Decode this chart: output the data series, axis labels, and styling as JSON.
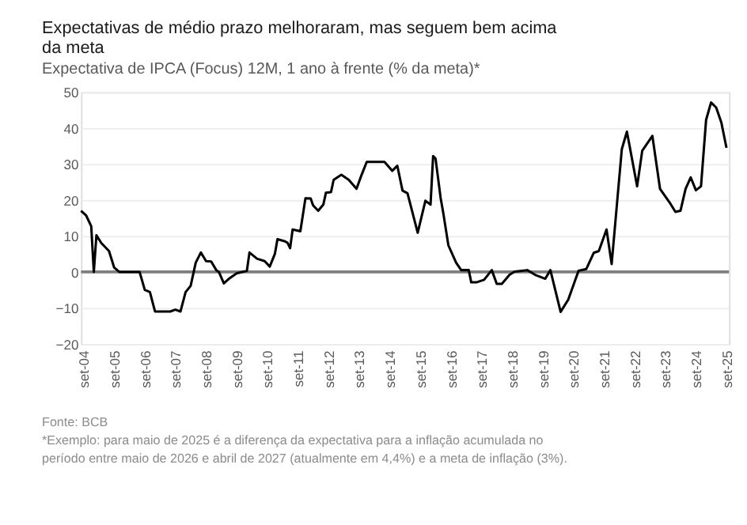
{
  "chart_data": {
    "type": "line",
    "title": "Expectativas de médio prazo melhoraram, mas seguem bem acima da meta",
    "subtitle": "Expectativa de IPCA (Focus) 12M, 1 ano à frente (% da meta)*",
    "x": [
      "2004-08",
      "2004-10",
      "2004-12",
      "2005-01",
      "2005-02",
      "2005-04",
      "2005-07",
      "2005-09",
      "2005-11",
      "2006-07",
      "2006-09",
      "2006-11",
      "2007-01",
      "2007-07",
      "2007-09",
      "2007-11",
      "2008-01",
      "2008-03",
      "2008-05",
      "2008-07",
      "2008-09",
      "2008-11",
      "2009-01",
      "2009-02",
      "2009-04",
      "2009-06",
      "2009-09",
      "2010-01",
      "2010-02",
      "2010-05",
      "2010-08",
      "2010-10",
      "2010-12",
      "2011-01",
      "2011-04",
      "2011-05",
      "2011-06",
      "2011-07",
      "2011-10",
      "2011-12",
      "2012-02",
      "2012-03",
      "2012-05",
      "2012-07",
      "2012-08",
      "2012-10",
      "2012-11",
      "2013-02",
      "2013-05",
      "2013-08",
      "2013-10",
      "2013-12",
      "2014-07",
      "2014-10",
      "2014-12",
      "2015-02",
      "2015-04",
      "2015-08",
      "2015-11",
      "2016-01",
      "2016-02",
      "2016-03",
      "2016-05",
      "2016-06",
      "2016-08",
      "2016-11",
      "2017-01",
      "2017-04",
      "2017-05",
      "2017-07",
      "2017-10",
      "2018-01",
      "2018-03",
      "2018-05",
      "2018-08",
      "2018-10",
      "2019-03",
      "2019-06",
      "2019-10",
      "2019-12",
      "2020-04",
      "2020-07",
      "2020-11",
      "2021-02",
      "2021-05",
      "2021-07",
      "2021-10",
      "2021-12",
      "2022-04",
      "2022-06",
      "2022-10",
      "2022-12",
      "2023-04",
      "2023-07",
      "2023-11",
      "2024-01",
      "2024-03",
      "2024-05",
      "2024-07",
      "2024-09",
      "2024-11",
      "2025-01",
      "2025-03",
      "2025-05",
      "2025-07",
      "2025-09"
    ],
    "series": [
      {
        "color": "#000000",
        "values": [
          17,
          15.7,
          12.7,
          0,
          10.2,
          8,
          5.8,
          1.2,
          0,
          0,
          -5,
          -5.6,
          -11,
          -11,
          -10.5,
          -11,
          -5.6,
          -3.9,
          2.6,
          5.4,
          3,
          2.9,
          0.5,
          0,
          -3.2,
          -1.9,
          -0.4,
          0.3,
          5.4,
          3.7,
          3,
          1.5,
          5,
          9.1,
          8.5,
          8.1,
          6.6,
          11.8,
          11.3,
          20.5,
          20.4,
          18.5,
          17,
          18.7,
          22,
          22.2,
          25.6,
          27,
          25.6,
          23.1,
          27,
          30.6,
          30.6,
          28.1,
          29.5,
          22.6,
          21.9,
          10.9,
          19.8,
          18.7,
          32.2,
          31.5,
          20.5,
          16.4,
          7.4,
          2.6,
          0.5,
          0.5,
          -2.9,
          -2.9,
          -2.2,
          0.5,
          -3.3,
          -3.3,
          -0.8,
          0.1,
          0.5,
          -0.8,
          -1.9,
          0.5,
          -11.1,
          -7.7,
          0.3,
          0.8,
          5.3,
          5.8,
          11.8,
          2.2,
          34.1,
          39,
          23.8,
          33.7,
          37.8,
          23.1,
          19,
          16.7,
          17,
          23.1,
          26.3,
          22.7,
          23.8,
          42.3,
          47.1,
          45.7,
          41.6,
          34.5
        ]
      }
    ],
    "xlim": [
      "2004-08",
      "2025-10"
    ],
    "xticks": [
      {
        "value": "2004-09",
        "label": "set-04"
      },
      {
        "value": "2005-09",
        "label": "set-05"
      },
      {
        "value": "2006-09",
        "label": "set-06"
      },
      {
        "value": "2007-09",
        "label": "set-07"
      },
      {
        "value": "2008-09",
        "label": "set-08"
      },
      {
        "value": "2009-09",
        "label": "set-09"
      },
      {
        "value": "2010-09",
        "label": "set-10"
      },
      {
        "value": "2011-09",
        "label": "set-11"
      },
      {
        "value": "2012-09",
        "label": "set-12"
      },
      {
        "value": "2013-09",
        "label": "set-13"
      },
      {
        "value": "2014-09",
        "label": "set-14"
      },
      {
        "value": "2015-09",
        "label": "set-15"
      },
      {
        "value": "2016-09",
        "label": "set-16"
      },
      {
        "value": "2017-09",
        "label": "set-17"
      },
      {
        "value": "2018-09",
        "label": "set-18"
      },
      {
        "value": "2019-09",
        "label": "set-19"
      },
      {
        "value": "2020-09",
        "label": "set-20"
      },
      {
        "value": "2021-09",
        "label": "set-21"
      },
      {
        "value": "2022-09",
        "label": "set-22"
      },
      {
        "value": "2023-09",
        "label": "set-23"
      },
      {
        "value": "2024-09",
        "label": "set-24"
      },
      {
        "value": "2025-09",
        "label": "set-25"
      }
    ],
    "ylim": [
      -20,
      50
    ],
    "yticks": [
      -20,
      -10,
      0,
      10,
      20,
      30,
      40,
      50
    ],
    "grid": "y",
    "ref_lines": [
      {
        "axis": "y",
        "value": 0,
        "color": "#7f7f7f"
      }
    ],
    "annotations": [
      "Fonte: BCB",
      "*Exemplo: para maio de 2025 é a diferença da expectativa para a inflação acumulada no período entre maio de 2026 e abril de 2027 (atualmente em 4,4%) e a meta de inflação (3%)."
    ]
  }
}
